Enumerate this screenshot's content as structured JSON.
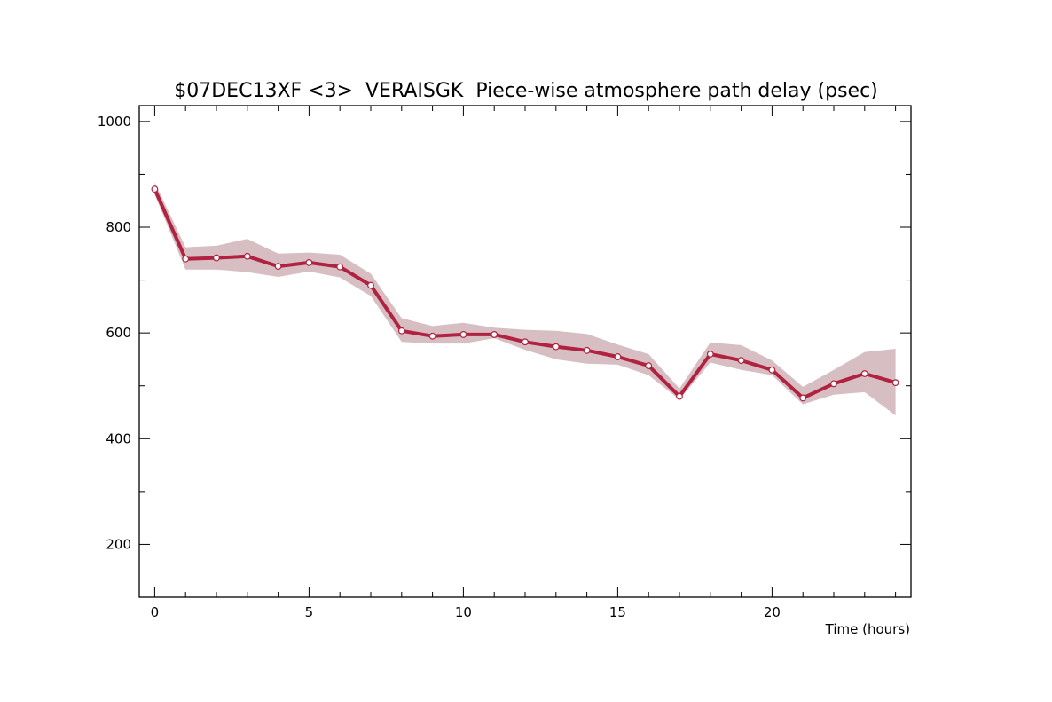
{
  "chart_data": {
    "type": "line",
    "title": "$07DEC13XF <3>  VERAISGK  Piece-wise atmosphere path delay (psec)",
    "xlabel": "Time (hours)",
    "ylabel": "",
    "xlim": [
      -0.5,
      24.5
    ],
    "ylim": [
      100,
      1030
    ],
    "x_ticks": [
      0,
      5,
      10,
      15,
      20
    ],
    "y_ticks": [
      200,
      400,
      600,
      800,
      1000
    ],
    "x_minor_step": 1,
    "y_minor_step": 100,
    "grid": false,
    "colors": {
      "line": "#b0223f",
      "band": "#d7bec3",
      "marker_fill": "#ffffff"
    },
    "series": [
      {
        "x": [
          0,
          1,
          2,
          3,
          4,
          5,
          6,
          7,
          8,
          9,
          10,
          11,
          12,
          13,
          14,
          15,
          16,
          17,
          18,
          19,
          20,
          21,
          22,
          23,
          24
        ],
        "values": [
          872,
          740,
          742,
          745,
          726,
          733,
          725,
          690,
          604,
          594,
          597,
          597,
          583,
          574,
          567,
          555,
          538,
          480,
          560,
          548,
          530,
          477,
          504,
          523,
          506
        ],
        "lower": [
          862,
          720,
          720,
          715,
          706,
          716,
          705,
          670,
          583,
          580,
          580,
          590,
          568,
          550,
          542,
          540,
          520,
          474,
          544,
          530,
          520,
          465,
          483,
          488,
          444
        ],
        "upper": [
          885,
          762,
          765,
          778,
          750,
          752,
          748,
          712,
          628,
          613,
          619,
          610,
          606,
          604,
          598,
          578,
          560,
          495,
          582,
          577,
          548,
          498,
          530,
          564,
          570
        ]
      }
    ]
  }
}
